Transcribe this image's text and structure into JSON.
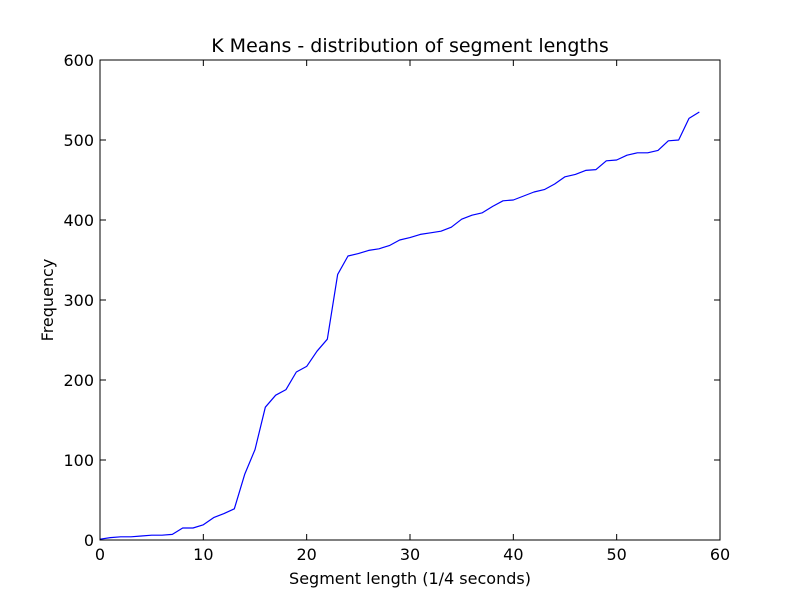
{
  "chart_data": {
    "type": "line",
    "title": "K Means - distribution of segment lengths",
    "xlabel": "Segment length (1/4 seconds)",
    "ylabel": "Frequency",
    "xlim": [
      0,
      60
    ],
    "ylim": [
      0,
      600
    ],
    "xticks": [
      0,
      10,
      20,
      30,
      40,
      50,
      60
    ],
    "yticks": [
      0,
      100,
      200,
      300,
      400,
      500,
      600
    ],
    "grid": false,
    "series": [
      {
        "color": "#0000ff",
        "x": [
          0,
          1,
          2,
          3,
          4,
          5,
          6,
          7,
          8,
          9,
          10,
          11,
          12,
          13,
          14,
          15,
          16,
          17,
          18,
          19,
          20,
          21,
          22,
          23,
          24,
          25,
          26,
          27,
          28,
          29,
          30,
          31,
          32,
          33,
          34,
          35,
          36,
          37,
          38,
          39,
          40,
          41,
          42,
          43,
          44,
          45,
          46,
          47,
          48,
          49,
          50,
          51,
          52,
          53,
          54,
          55,
          56,
          57,
          58
        ],
        "y": [
          1,
          3,
          4,
          4,
          5,
          6,
          6,
          7,
          15,
          15,
          19,
          28,
          33,
          39,
          82,
          113,
          166,
          181,
          188,
          210,
          217,
          236,
          251,
          332,
          355,
          358,
          362,
          364,
          368,
          375,
          378,
          382,
          384,
          386,
          391,
          401,
          406,
          409,
          417,
          424,
          425,
          430,
          435,
          438,
          445,
          454,
          457,
          462,
          463,
          474,
          475,
          481,
          484,
          484,
          487,
          499,
          500,
          527,
          535
        ]
      }
    ]
  }
}
